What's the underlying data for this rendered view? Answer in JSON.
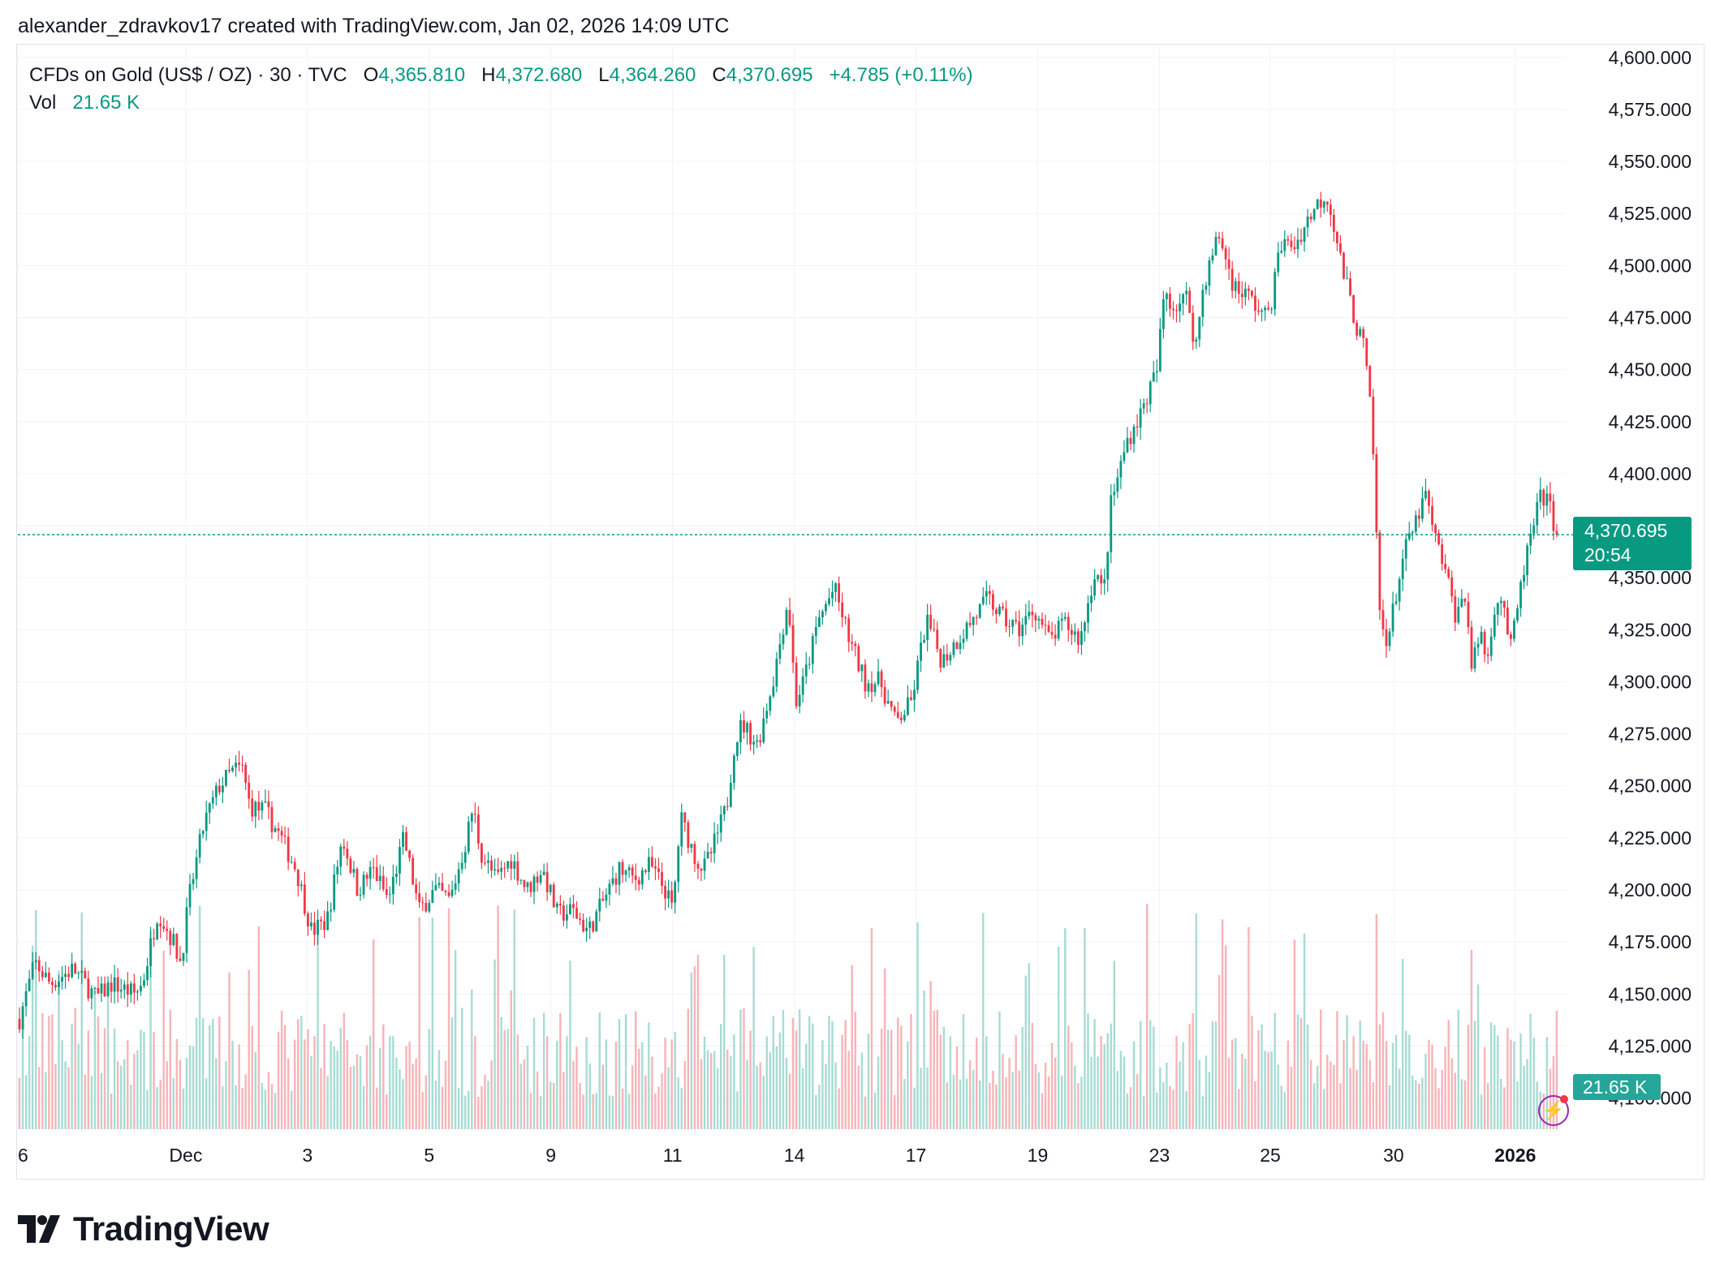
{
  "header": {
    "attribution": "alexander_zdravkov17 created with TradingView.com, Jan 02, 2026 14:09 UTC"
  },
  "legend": {
    "symbol": "CFDs on Gold (US$ / OZ) · 30 · TVC",
    "o_label": "O",
    "o_value": "4,365.810",
    "h_label": "H",
    "h_value": "4,372.680",
    "l_label": "L",
    "l_value": "4,364.260",
    "c_label": "C",
    "c_value": "4,370.695",
    "change": "+4.785 (+0.11%)",
    "vol_label": "Vol",
    "vol_value": "21.65 K"
  },
  "price_tag": {
    "price": "4,370.695",
    "countdown": "20:54"
  },
  "volume_tag": "21.65 K",
  "logo_text": "TradingView",
  "colors": {
    "up": "#089981",
    "down": "#f23645",
    "up_vol": "#a7dcd3",
    "down_vol": "#f7b4b8",
    "grid": "#f0f3fa",
    "last_price_line": "#089981"
  },
  "icons": {
    "alert": "lightning-icon"
  },
  "chart_data": {
    "type": "candlestick",
    "title": "CFDs on Gold (US$ / OZ)",
    "interval": "30",
    "ylim": [
      4085,
      4605
    ],
    "y_ticks": [
      "4,600.000",
      "4,575.000",
      "4,550.000",
      "4,525.000",
      "4,500.000",
      "4,475.000",
      "4,450.000",
      "4,425.000",
      "4,400.000",
      "4,375.000",
      "4,350.000",
      "4,325.000",
      "4,300.000",
      "4,275.000",
      "4,250.000",
      "4,225.000",
      "4,200.000",
      "4,175.000",
      "4,150.000",
      "4,125.000",
      "4,100.000"
    ],
    "x_ticks": [
      {
        "label": "6",
        "x": 0
      },
      {
        "label": "Dec",
        "x": 0.109
      },
      {
        "label": "3",
        "x": 0.188
      },
      {
        "label": "5",
        "x": 0.267
      },
      {
        "label": "9",
        "x": 0.346
      },
      {
        "label": "11",
        "x": 0.425
      },
      {
        "label": "14",
        "x": 0.504
      },
      {
        "label": "17",
        "x": 0.583
      },
      {
        "label": "19",
        "x": 0.662
      },
      {
        "label": "23",
        "x": 0.741
      },
      {
        "label": "25",
        "x": 0.813
      },
      {
        "label": "30",
        "x": 0.893
      },
      {
        "label": "2026",
        "x": 0.972
      }
    ],
    "last_price": 4370.695,
    "path": [
      [
        0,
        4138
      ],
      [
        0.01,
        4165
      ],
      [
        0.02,
        4155
      ],
      [
        0.035,
        4162
      ],
      [
        0.05,
        4148
      ],
      [
        0.06,
        4155
      ],
      [
        0.075,
        4150
      ],
      [
        0.08,
        4155
      ],
      [
        0.09,
        4190
      ],
      [
        0.1,
        4175
      ],
      [
        0.105,
        4165
      ],
      [
        0.11,
        4195
      ],
      [
        0.12,
        4232
      ],
      [
        0.13,
        4250
      ],
      [
        0.14,
        4258
      ],
      [
        0.145,
        4258
      ],
      [
        0.15,
        4240
      ],
      [
        0.16,
        4238
      ],
      [
        0.17,
        4225
      ],
      [
        0.18,
        4210
      ],
      [
        0.19,
        4180
      ],
      [
        0.2,
        4185
      ],
      [
        0.21,
        4225
      ],
      [
        0.22,
        4200
      ],
      [
        0.23,
        4210
      ],
      [
        0.24,
        4195
      ],
      [
        0.25,
        4225
      ],
      [
        0.26,
        4190
      ],
      [
        0.27,
        4200
      ],
      [
        0.28,
        4195
      ],
      [
        0.29,
        4222
      ],
      [
        0.295,
        4240
      ],
      [
        0.3,
        4218
      ],
      [
        0.31,
        4205
      ],
      [
        0.32,
        4215
      ],
      [
        0.33,
        4200
      ],
      [
        0.34,
        4210
      ],
      [
        0.35,
        4188
      ],
      [
        0.36,
        4190
      ],
      [
        0.37,
        4180
      ],
      [
        0.38,
        4195
      ],
      [
        0.39,
        4210
      ],
      [
        0.4,
        4205
      ],
      [
        0.41,
        4212
      ],
      [
        0.42,
        4200
      ],
      [
        0.425,
        4190
      ],
      [
        0.43,
        4235
      ],
      [
        0.44,
        4215
      ],
      [
        0.445,
        4210
      ],
      [
        0.45,
        4218
      ],
      [
        0.46,
        4240
      ],
      [
        0.465,
        4270
      ],
      [
        0.47,
        4280
      ],
      [
        0.48,
        4270
      ],
      [
        0.49,
        4300
      ],
      [
        0.5,
        4340
      ],
      [
        0.505,
        4290
      ],
      [
        0.51,
        4300
      ],
      [
        0.52,
        4330
      ],
      [
        0.53,
        4345
      ],
      [
        0.54,
        4320
      ],
      [
        0.55,
        4300
      ],
      [
        0.56,
        4300
      ],
      [
        0.57,
        4280
      ],
      [
        0.58,
        4290
      ],
      [
        0.59,
        4330
      ],
      [
        0.6,
        4310
      ],
      [
        0.61,
        4320
      ],
      [
        0.62,
        4330
      ],
      [
        0.63,
        4340
      ],
      [
        0.64,
        4330
      ],
      [
        0.65,
        4325
      ],
      [
        0.66,
        4335
      ],
      [
        0.67,
        4320
      ],
      [
        0.68,
        4328
      ],
      [
        0.69,
        4320
      ],
      [
        0.7,
        4355
      ],
      [
        0.705,
        4340
      ],
      [
        0.71,
        4385
      ],
      [
        0.72,
        4415
      ],
      [
        0.73,
        4430
      ],
      [
        0.74,
        4450
      ],
      [
        0.745,
        4490
      ],
      [
        0.75,
        4480
      ],
      [
        0.76,
        4485
      ],
      [
        0.765,
        4460
      ],
      [
        0.77,
        4490
      ],
      [
        0.78,
        4515
      ],
      [
        0.79,
        4490
      ],
      [
        0.8,
        4485
      ],
      [
        0.81,
        4475
      ],
      [
        0.815,
        4485
      ],
      [
        0.82,
        4510
      ],
      [
        0.83,
        4510
      ],
      [
        0.84,
        4525
      ],
      [
        0.85,
        4535
      ],
      [
        0.855,
        4520
      ],
      [
        0.86,
        4500
      ],
      [
        0.87,
        4470
      ],
      [
        0.875,
        4460
      ],
      [
        0.88,
        4420
      ],
      [
        0.885,
        4330
      ],
      [
        0.89,
        4320
      ],
      [
        0.9,
        4360
      ],
      [
        0.91,
        4380
      ],
      [
        0.915,
        4390
      ],
      [
        0.92,
        4370
      ],
      [
        0.925,
        4360
      ],
      [
        0.935,
        4330
      ],
      [
        0.94,
        4345
      ],
      [
        0.945,
        4305
      ],
      [
        0.95,
        4325
      ],
      [
        0.955,
        4310
      ],
      [
        0.96,
        4340
      ],
      [
        0.965,
        4340
      ],
      [
        0.97,
        4315
      ],
      [
        0.98,
        4360
      ],
      [
        0.985,
        4375
      ],
      [
        0.99,
        4390
      ],
      [
        0.995,
        4385
      ],
      [
        1,
        4371
      ]
    ]
  }
}
